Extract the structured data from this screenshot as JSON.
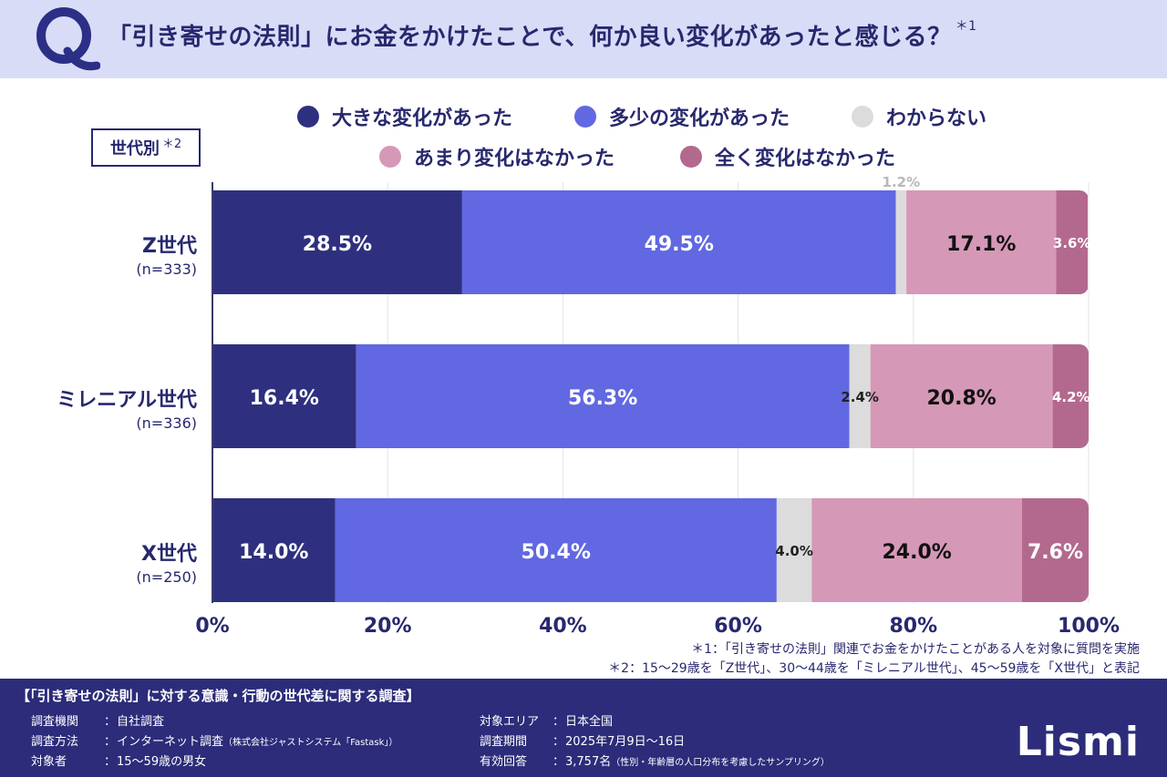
{
  "header": {
    "title": "「引き寄せの法則」にお金をかけたことで、何か良い変化があったと感じる？",
    "title_note": "＊1"
  },
  "legend": [
    {
      "label": "大きな変化があった",
      "color": "#2e307f"
    },
    {
      "label": "多少の変化があった",
      "color": "#6168e1"
    },
    {
      "label": "わからない",
      "color": "#dcdcdc"
    },
    {
      "label": "あまり変化はなかった",
      "color": "#d698b7"
    },
    {
      "label": "全く変化はなかった",
      "color": "#b3698e"
    }
  ],
  "group_label": {
    "text": "世代別",
    "note": "＊2"
  },
  "chart_data": {
    "type": "bar",
    "orientation": "horizontal",
    "stacked": true,
    "categories": [
      {
        "name": "Z世代",
        "n": "(n=333)"
      },
      {
        "name": "ミレニアル世代",
        "n": "(n=336)"
      },
      {
        "name": "X世代",
        "n": "(n=250)"
      }
    ],
    "series": [
      {
        "name": "大きな変化があった",
        "values": [
          28.5,
          16.4,
          14.0
        ]
      },
      {
        "name": "多少の変化があった",
        "values": [
          49.5,
          56.3,
          50.4
        ]
      },
      {
        "name": "わからない",
        "values": [
          1.2,
          2.4,
          4.0
        ]
      },
      {
        "name": "あまり変化はなかった",
        "values": [
          17.1,
          20.8,
          24.0
        ]
      },
      {
        "name": "全く変化はなかった",
        "values": [
          3.6,
          4.2,
          7.6
        ]
      }
    ],
    "xlim": [
      0,
      100
    ],
    "x_ticks": [
      "0%",
      "20%",
      "40%",
      "60%",
      "80%",
      "100%"
    ],
    "grid": true
  },
  "footnotes": [
    "＊1：「引き寄せの法則」関連でお金をかけたことがある人を対象に質問を実施",
    "＊2：15〜29歳を「Z世代」、30〜44歳を「ミレニアル世代」、45〜59歳を「X世代」と表記"
  ],
  "footer": {
    "title": "【「引き寄せの法則」に対する意識・行動の世代差に関する調査】",
    "left": [
      {
        "key": "調査機関",
        "value": "自社調査",
        "small": ""
      },
      {
        "key": "調査方法",
        "value": "インターネット調査",
        "small": "（株式会社ジャストシステム「Fastask」）"
      },
      {
        "key": "対象者",
        "value": "15〜59歳の男女",
        "small": ""
      }
    ],
    "right": [
      {
        "key": "対象エリア",
        "value": "日本全国",
        "small": ""
      },
      {
        "key": "調査期間",
        "value": "2025年7月9日〜16日",
        "small": ""
      },
      {
        "key": "有効回答",
        "value": "3,757名",
        "small": "（性別・年齢層の人口分布を考慮したサンプリング）"
      }
    ],
    "logo": "Lismi"
  }
}
